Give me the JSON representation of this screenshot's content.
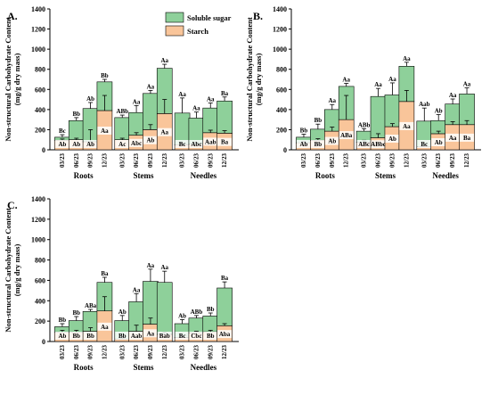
{
  "figure": {
    "legend": {
      "soluble_label": "Soluble sugar",
      "starch_label": "Starch"
    },
    "colors": {
      "starch": "#f9c59a",
      "soluble": "#8ed09a",
      "edge": "#000000"
    }
  },
  "chart_data": [
    {
      "panel": "A.",
      "type": "bar",
      "stacked": true,
      "ylabel": "Non-structural Carbohydrate Content",
      "ylabel2": "(mg/g dry mass)",
      "ylim": [
        0,
        1400
      ],
      "yticks": [
        0,
        200,
        400,
        600,
        800,
        1000,
        1200,
        1400
      ],
      "legend": true,
      "groups": [
        {
          "name": "Roots",
          "categories": [
            "03/23",
            "06/23",
            "09/23",
            "12/23"
          ],
          "starch": [
            95,
            100,
            80,
            390
          ],
          "soluble": [
            30,
            190,
            330,
            285
          ],
          "starch_err": [
            12,
            15,
            120,
            150
          ],
          "soluble_err": [
            25,
            30,
            60,
            25
          ],
          "starch_labels": [
            "Ab",
            "Ab",
            "Ab",
            "Aa"
          ],
          "total_labels": [
            "Bc",
            "Bb",
            "Ab",
            "Bb"
          ]
        },
        {
          "name": "Stems",
          "categories": [
            "03/23",
            "06/23",
            "09/23",
            "12/23"
          ],
          "starch": [
            100,
            145,
            200,
            360
          ],
          "soluble": [
            220,
            225,
            360,
            450
          ],
          "starch_err": [
            15,
            25,
            50,
            140
          ],
          "soluble_err": [
            25,
            70,
            30,
            40
          ],
          "starch_labels": [
            "Ac",
            "Abc",
            "Ab",
            "Aa"
          ],
          "total_labels": [
            "ABb",
            "Aa",
            "Aa",
            "Aa"
          ]
        },
        {
          "name": "Needles",
          "categories": [
            "03/23",
            "06/23",
            "09/23",
            "12/23"
          ],
          "starch": [
            50,
            55,
            170,
            165
          ],
          "soluble": [
            315,
            260,
            245,
            320
          ],
          "starch_err": [
            15,
            20,
            25,
            25
          ],
          "soluble_err": [
            150,
            60,
            50,
            40
          ],
          "starch_labels": [
            "Bc",
            "Abc",
            "Aab",
            "Ba"
          ],
          "total_labels": [
            "Aa",
            "Aa",
            "Aa",
            "Ba"
          ]
        }
      ]
    },
    {
      "panel": "B.",
      "type": "bar",
      "stacked": true,
      "ylabel": "Non-structural Carbohydrate Content",
      "ylabel2": "(mg/g dry mass)",
      "ylim": [
        0,
        1400
      ],
      "yticks": [
        0,
        200,
        400,
        600,
        800,
        1000,
        1200,
        1400
      ],
      "groups": [
        {
          "name": "Roots",
          "categories": [
            "03/23",
            "06/23",
            "09/23",
            "12/23"
          ],
          "starch": [
            70,
            95,
            185,
            300
          ],
          "soluble": [
            55,
            110,
            215,
            330
          ],
          "starch_err": [
            15,
            15,
            40,
            240
          ],
          "soluble_err": [
            30,
            50,
            50,
            30
          ],
          "starch_labels": [
            "Ab",
            "Bb",
            "Ab",
            "ABa"
          ],
          "total_labels": [
            "Bb",
            "Bb",
            "Aa",
            "Aa"
          ]
        },
        {
          "name": "Stems",
          "categories": [
            "03/23",
            "06/23",
            "09/23",
            "12/23"
          ],
          "starch": [
            75,
            120,
            230,
            480
          ],
          "soluble": [
            110,
            410,
            315,
            350
          ],
          "starch_err": [
            20,
            40,
            30,
            110
          ],
          "soluble_err": [
            25,
            80,
            120,
            40
          ],
          "starch_labels": [
            "ABc",
            "ABbc",
            "Ab",
            "Aa"
          ],
          "total_labels": [
            "ABb",
            "Aa",
            "Aa",
            "Aa"
          ]
        },
        {
          "name": "Needles",
          "categories": [
            "03/23",
            "06/23",
            "09/23",
            "12/23"
          ],
          "starch": [
            30,
            160,
            250,
            250
          ],
          "soluble": [
            255,
            130,
            205,
            305
          ],
          "starch_err": [
            10,
            25,
            30,
            40
          ],
          "soluble_err": [
            130,
            60,
            50,
            60
          ],
          "starch_labels": [
            "Bc",
            "Ab",
            "Aa",
            "Ba"
          ],
          "total_labels": [
            "Aab",
            "Ab",
            "Aa",
            "Aa"
          ]
        }
      ]
    },
    {
      "panel": "C.",
      "type": "bar",
      "stacked": true,
      "ylabel": "Non-structural Carbohydrate Content",
      "ylabel2": "(mg/g dry mass)",
      "ylim": [
        0,
        1400
      ],
      "yticks": [
        0,
        200,
        400,
        600,
        800,
        1000,
        1200,
        1400
      ],
      "groups": [
        {
          "name": "Roots",
          "categories": [
            "03/23",
            "06/23",
            "09/23",
            "12/23"
          ],
          "starch": [
            90,
            90,
            100,
            300
          ],
          "soluble": [
            55,
            115,
            195,
            280
          ],
          "starch_err": [
            20,
            20,
            35,
            140
          ],
          "soluble_err": [
            30,
            40,
            20,
            50
          ],
          "starch_labels": [
            "Ab",
            "Bb",
            "Bb",
            "Aa"
          ],
          "total_labels": [
            "Bb",
            "Bb",
            "ABa",
            "Ba"
          ]
        },
        {
          "name": "Stems",
          "categories": [
            "03/23",
            "06/23",
            "09/23",
            "12/23"
          ],
          "starch": [
            25,
            100,
            170,
            70
          ],
          "soluble": [
            180,
            290,
            420,
            510
          ],
          "starch_err": [
            10,
            60,
            60,
            20
          ],
          "soluble_err": [
            50,
            80,
            120,
            110
          ],
          "starch_labels": [
            "Bb",
            "Aab",
            "Aa",
            "Bab"
          ],
          "total_labels": [
            "Ab",
            "Aa",
            "Aa",
            "Aa"
          ]
        },
        {
          "name": "Needles",
          "categories": [
            "03/23",
            "06/23",
            "09/23",
            "12/23"
          ],
          "starch": [
            40,
            85,
            95,
            155
          ],
          "soluble": [
            135,
            145,
            155,
            370
          ],
          "starch_err": [
            10,
            15,
            15,
            20
          ],
          "soluble_err": [
            40,
            25,
            30,
            60
          ],
          "starch_labels": [
            "Bc",
            "Cbc",
            "Bb",
            "Aba"
          ],
          "total_labels": [
            "Ab",
            "ABb",
            "Bb",
            "Ba"
          ]
        }
      ]
    }
  ]
}
